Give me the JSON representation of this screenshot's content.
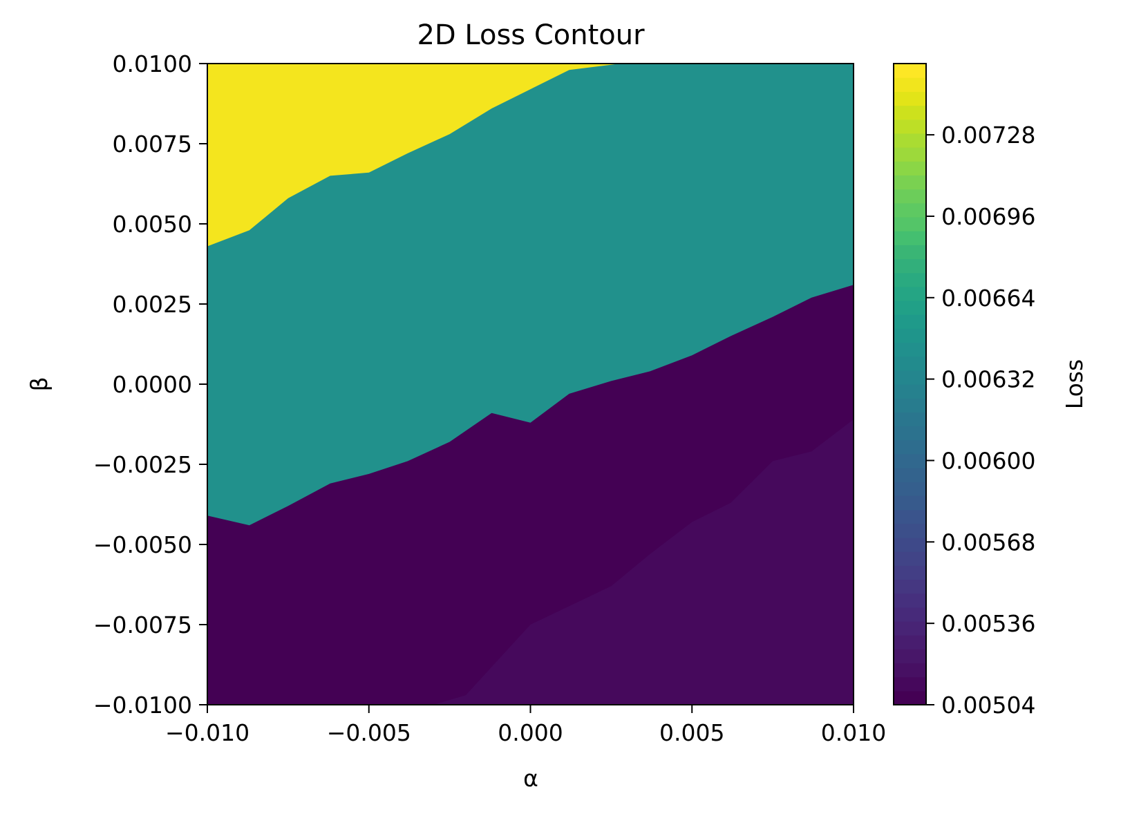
{
  "chart_data": {
    "type": "heatmap",
    "title": "2D Loss Contour",
    "xlabel": "α",
    "ylabel": "β",
    "xlim": [
      -0.01,
      0.01
    ],
    "ylim": [
      -0.01,
      0.01
    ],
    "x_ticks": [
      -0.01,
      -0.005,
      0.0,
      0.005,
      0.01
    ],
    "x_tick_labels": [
      "−0.010",
      "−0.005",
      "0.000",
      "0.005",
      "0.010"
    ],
    "y_ticks": [
      0.01,
      0.0075,
      0.005,
      0.0025,
      0.0,
      -0.0025,
      -0.005,
      -0.0075,
      -0.01
    ],
    "y_tick_labels": [
      "0.0100",
      "0.0075",
      "0.0050",
      "0.0025",
      "0.0000",
      "−0.0025",
      "−0.0050",
      "−0.0075",
      "−0.0100"
    ],
    "colorbar": {
      "label": "Loss",
      "colormap": "viridis",
      "range": [
        0.00504,
        0.00756
      ],
      "ticks": [
        0.00504,
        0.00536,
        0.00568,
        0.006,
        0.00632,
        0.00664,
        0.00696,
        0.00728
      ],
      "tick_labels": [
        "0.00504",
        "0.00536",
        "0.00568",
        "0.00600",
        "0.00632",
        "0.00664",
        "0.00696",
        "0.00728"
      ],
      "level_colors": [
        "#440154",
        "#46085c",
        "#471063",
        "#481769",
        "#481d6f",
        "#482475",
        "#472a7a",
        "#46307e",
        "#453781",
        "#433e85",
        "#414487",
        "#3e4989",
        "#3c4f8a",
        "#3a548c",
        "#375a8c",
        "#355f8d",
        "#33638d",
        "#31688e",
        "#2e6d8e",
        "#2c728e",
        "#2a768e",
        "#287c8e",
        "#26818e",
        "#24868e",
        "#228b8d",
        "#21908d",
        "#1f958b",
        "#1f9a8a",
        "#21a087",
        "#25a584",
        "#2aaa80",
        "#32af7b",
        "#3ab575",
        "#44bf70",
        "#54c568",
        "#5ec962",
        "#6ccd5a",
        "#7ad151",
        "#8bd646",
        "#9dd93b",
        "#aadc32",
        "#bddf26",
        "#cde11d",
        "#e2e418",
        "#f1e51d",
        "#fde725"
      ]
    },
    "regions": [
      {
        "level_value": 0.00748,
        "color": "#f4e51e",
        "boundary": [
          [
            -0.01,
            0.0043
          ],
          [
            -0.0087,
            0.0048
          ],
          [
            -0.0075,
            0.0058
          ],
          [
            -0.0062,
            0.0065
          ],
          [
            -0.005,
            0.0066
          ],
          [
            -0.0038,
            0.0072
          ],
          [
            -0.0025,
            0.0078
          ],
          [
            -0.0012,
            0.0086
          ],
          [
            0.0,
            0.0092
          ],
          [
            0.0012,
            0.0098
          ],
          [
            0.0028,
            0.01
          ]
        ]
      },
      {
        "level_value": 0.00628,
        "color": "#21918c",
        "boundary_lower": [
          [
            -0.01,
            -0.0041
          ],
          [
            -0.0087,
            -0.0044
          ],
          [
            -0.0075,
            -0.0038
          ],
          [
            -0.0062,
            -0.0031
          ],
          [
            -0.005,
            -0.0028
          ],
          [
            -0.0038,
            -0.0024
          ],
          [
            -0.0025,
            -0.0018
          ],
          [
            -0.0012,
            -0.0009
          ],
          [
            0.0,
            -0.0012
          ],
          [
            0.0012,
            -0.0003
          ],
          [
            0.0025,
            0.0001
          ],
          [
            0.0037,
            0.0004
          ],
          [
            0.005,
            0.0009
          ],
          [
            0.0062,
            0.0015
          ],
          [
            0.0075,
            0.0021
          ],
          [
            0.0087,
            0.0027
          ],
          [
            0.01,
            0.0031
          ]
        ]
      },
      {
        "level_value": 0.00508,
        "color": "#440154",
        "boundary_lower": [
          [
            -0.003,
            -0.01
          ],
          [
            -0.002,
            -0.0097
          ],
          [
            0.0,
            -0.0075
          ],
          [
            0.0025,
            -0.0063
          ],
          [
            0.0037,
            -0.0053
          ],
          [
            0.005,
            -0.0043
          ],
          [
            0.0062,
            -0.0037
          ],
          [
            0.0075,
            -0.0024
          ],
          [
            0.0087,
            -0.0021
          ],
          [
            0.01,
            -0.0011
          ]
        ]
      },
      {
        "level_value": 0.00513,
        "color": "#46095c"
      }
    ]
  }
}
